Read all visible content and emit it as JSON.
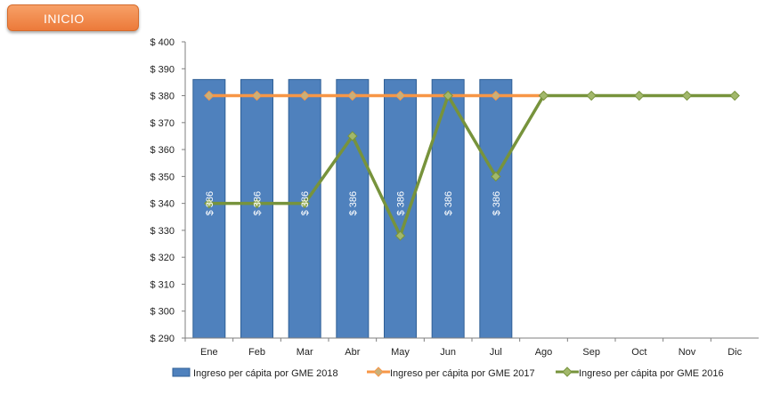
{
  "header": {
    "inicio_label": "INICIO"
  },
  "colors": {
    "bar_fill": "#4f81bd",
    "bar_stroke": "#2f5f96",
    "series_2017": "#f79646",
    "series_2017_marker": "#c9b07a",
    "series_2016": "#77933c",
    "series_2016_marker": "#a2b86b",
    "axis": "#7f7f7f",
    "inicio_button": "#ec7a3a"
  },
  "chart_data": {
    "type": "bar",
    "categories": [
      "Ene",
      "Feb",
      "Mar",
      "Abr",
      "May",
      "Jun",
      "Jul",
      "Ago",
      "Sep",
      "Oct",
      "Nov",
      "Dic"
    ],
    "y_tick_labels": [
      "$ 290",
      "$ 300",
      "$ 310",
      "$ 320",
      "$ 330",
      "$ 340",
      "$ 350",
      "$ 360",
      "$ 370",
      "$ 380",
      "$ 390",
      "$ 400"
    ],
    "ylim": [
      290,
      400
    ],
    "grid": false,
    "legend_position": "bottom",
    "series": [
      {
        "name": "Ingreso per cápita por GME 2018",
        "type": "bar",
        "values": [
          386,
          386,
          386,
          386,
          386,
          386,
          386,
          null,
          null,
          null,
          null,
          null
        ],
        "data_labels": [
          "$ 386",
          "$ 386",
          "$ 386",
          "$ 386",
          "$ 386",
          "$ 386",
          "$ 386",
          "",
          "",
          "",
          "",
          ""
        ]
      },
      {
        "name": "Ingreso per cápita por GME 2017",
        "type": "line",
        "values": [
          380,
          380,
          380,
          380,
          380,
          380,
          380,
          380,
          null,
          null,
          null,
          null
        ]
      },
      {
        "name": "Ingreso per cápita por GME 2016",
        "type": "line",
        "values": [
          340,
          340,
          340,
          365,
          328,
          380,
          350,
          380,
          380,
          380,
          380,
          380
        ]
      }
    ]
  }
}
